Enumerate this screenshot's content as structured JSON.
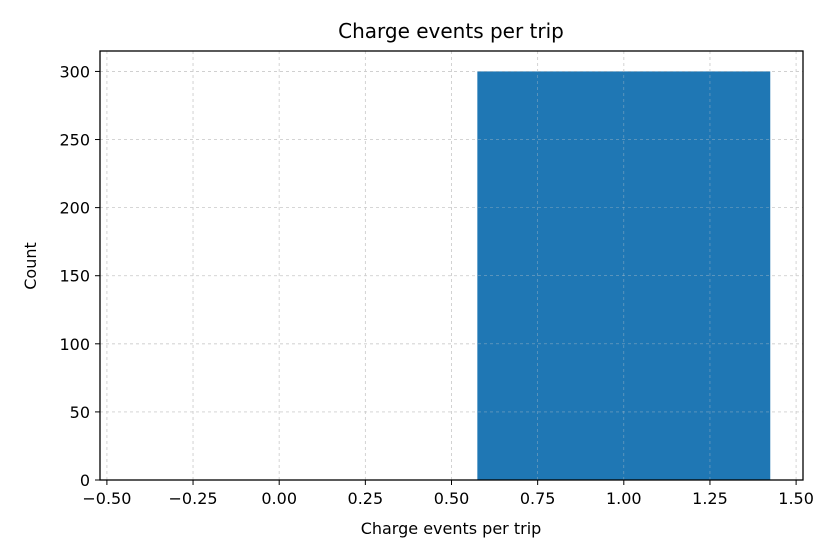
{
  "chart_data": {
    "type": "bar",
    "title": "Charge events per trip",
    "xlabel": "Charge events per trip",
    "ylabel": "Count",
    "bars": [
      {
        "x_left": 0.575,
        "x_right": 1.425,
        "value": 300
      }
    ],
    "xlim": [
      -0.52,
      1.52
    ],
    "ylim": [
      0,
      315
    ],
    "xticks": [
      -0.5,
      -0.25,
      0.0,
      0.25,
      0.5,
      0.75,
      1.0,
      1.25,
      1.5
    ],
    "xtick_labels": [
      "−0.50",
      "−0.25",
      "0.00",
      "0.25",
      "0.50",
      "0.75",
      "1.00",
      "1.25",
      "1.50"
    ],
    "yticks": [
      0,
      50,
      100,
      150,
      200,
      250,
      300
    ],
    "ytick_labels": [
      "0",
      "50",
      "100",
      "150",
      "200",
      "250",
      "300"
    ],
    "grid": true,
    "bar_color": "#1f77b4",
    "grid_color": "#cccccc"
  }
}
